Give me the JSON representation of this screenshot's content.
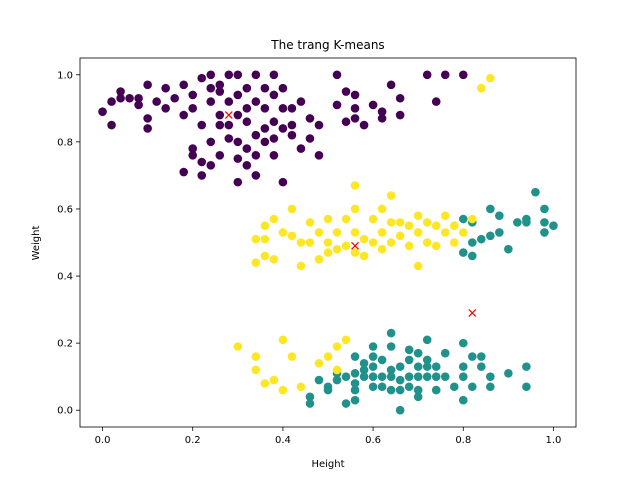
{
  "chart_data": {
    "type": "scatter",
    "title": "The trang K-means",
    "xlabel": "Height",
    "ylabel": "Weight",
    "xlim": [
      -0.05,
      1.05
    ],
    "ylim": [
      -0.05,
      1.05
    ],
    "xticks": [
      "0.0",
      "0.2",
      "0.4",
      "0.6",
      "0.8",
      "1.0"
    ],
    "yticks": [
      "0.0",
      "0.2",
      "0.4",
      "0.6",
      "0.8",
      "1.0"
    ],
    "grid": false,
    "series": [
      {
        "color": "#440154",
        "points": [
          [
            0.0,
            0.89
          ],
          [
            0.02,
            0.92
          ],
          [
            0.02,
            0.85
          ],
          [
            0.04,
            0.95
          ],
          [
            0.04,
            0.93
          ],
          [
            0.06,
            0.93
          ],
          [
            0.08,
            0.93
          ],
          [
            0.08,
            0.91
          ],
          [
            0.1,
            0.97
          ],
          [
            0.1,
            0.87
          ],
          [
            0.1,
            0.84
          ],
          [
            0.12,
            0.92
          ],
          [
            0.14,
            0.96
          ],
          [
            0.14,
            0.9
          ],
          [
            0.16,
            0.93
          ],
          [
            0.18,
            0.97
          ],
          [
            0.18,
            0.88
          ],
          [
            0.18,
            0.71
          ],
          [
            0.2,
            0.94
          ],
          [
            0.2,
            0.9
          ],
          [
            0.2,
            0.78
          ],
          [
            0.2,
            0.76
          ],
          [
            0.22,
            0.99
          ],
          [
            0.22,
            0.85
          ],
          [
            0.22,
            0.74
          ],
          [
            0.22,
            0.7
          ],
          [
            0.24,
            1.0
          ],
          [
            0.24,
            0.96
          ],
          [
            0.24,
            0.92
          ],
          [
            0.24,
            0.8
          ],
          [
            0.24,
            0.73
          ],
          [
            0.26,
            0.97
          ],
          [
            0.26,
            0.95
          ],
          [
            0.26,
            0.88
          ],
          [
            0.26,
            0.85
          ],
          [
            0.26,
            0.76
          ],
          [
            0.28,
            1.0
          ],
          [
            0.28,
            0.92
          ],
          [
            0.28,
            0.85
          ],
          [
            0.28,
            0.81
          ],
          [
            0.3,
            1.0
          ],
          [
            0.3,
            0.94
          ],
          [
            0.3,
            0.88
          ],
          [
            0.3,
            0.8
          ],
          [
            0.3,
            0.75
          ],
          [
            0.3,
            0.68
          ],
          [
            0.32,
            0.96
          ],
          [
            0.32,
            0.9
          ],
          [
            0.32,
            0.86
          ],
          [
            0.32,
            0.78
          ],
          [
            0.32,
            0.73
          ],
          [
            0.34,
            1.0
          ],
          [
            0.34,
            0.92
          ],
          [
            0.34,
            0.82
          ],
          [
            0.34,
            0.76
          ],
          [
            0.34,
            0.7
          ],
          [
            0.36,
            0.96
          ],
          [
            0.36,
            0.9
          ],
          [
            0.36,
            0.84
          ],
          [
            0.36,
            0.8
          ],
          [
            0.38,
            1.0
          ],
          [
            0.38,
            0.94
          ],
          [
            0.38,
            0.86
          ],
          [
            0.38,
            0.81
          ],
          [
            0.38,
            0.76
          ],
          [
            0.4,
            0.96
          ],
          [
            0.4,
            0.9
          ],
          [
            0.4,
            0.84
          ],
          [
            0.4,
            0.68
          ],
          [
            0.42,
            0.9
          ],
          [
            0.42,
            0.85
          ],
          [
            0.42,
            0.82
          ],
          [
            0.44,
            0.92
          ],
          [
            0.44,
            0.78
          ],
          [
            0.46,
            0.87
          ],
          [
            0.46,
            0.81
          ],
          [
            0.48,
            0.85
          ],
          [
            0.48,
            0.76
          ],
          [
            0.52,
            1.0
          ],
          [
            0.52,
            0.91
          ],
          [
            0.54,
            0.95
          ],
          [
            0.54,
            0.86
          ],
          [
            0.56,
            0.94
          ],
          [
            0.56,
            0.9
          ],
          [
            0.56,
            0.87
          ],
          [
            0.58,
            0.85
          ],
          [
            0.6,
            0.91
          ],
          [
            0.62,
            0.89
          ],
          [
            0.62,
            0.87
          ],
          [
            0.64,
            0.97
          ],
          [
            0.66,
            0.93
          ],
          [
            0.66,
            0.88
          ],
          [
            0.72,
            1.0
          ],
          [
            0.74,
            0.92
          ],
          [
            0.76,
            1.0
          ],
          [
            0.8,
            1.0
          ]
        ]
      },
      {
        "color": "#21918c",
        "points": [
          [
            0.46,
            0.04
          ],
          [
            0.46,
            0.02
          ],
          [
            0.48,
            0.09
          ],
          [
            0.5,
            0.07
          ],
          [
            0.5,
            0.06
          ],
          [
            0.52,
            0.11
          ],
          [
            0.52,
            0.09
          ],
          [
            0.54,
            0.1
          ],
          [
            0.54,
            0.02
          ],
          [
            0.56,
            0.16
          ],
          [
            0.56,
            0.11
          ],
          [
            0.56,
            0.08
          ],
          [
            0.56,
            0.06
          ],
          [
            0.56,
            0.03
          ],
          [
            0.58,
            0.14
          ],
          [
            0.58,
            0.12
          ],
          [
            0.58,
            0.1
          ],
          [
            0.6,
            0.19
          ],
          [
            0.6,
            0.16
          ],
          [
            0.6,
            0.13
          ],
          [
            0.6,
            0.1
          ],
          [
            0.6,
            0.07
          ],
          [
            0.62,
            0.15
          ],
          [
            0.62,
            0.1
          ],
          [
            0.62,
            0.07
          ],
          [
            0.64,
            0.23
          ],
          [
            0.64,
            0.19
          ],
          [
            0.64,
            0.12
          ],
          [
            0.64,
            0.1
          ],
          [
            0.64,
            0.06
          ],
          [
            0.66,
            0.13
          ],
          [
            0.66,
            0.09
          ],
          [
            0.66,
            0.06
          ],
          [
            0.66,
            0.0
          ],
          [
            0.68,
            0.18
          ],
          [
            0.68,
            0.15
          ],
          [
            0.68,
            0.1
          ],
          [
            0.68,
            0.07
          ],
          [
            0.7,
            0.17
          ],
          [
            0.7,
            0.13
          ],
          [
            0.7,
            0.1
          ],
          [
            0.7,
            0.06
          ],
          [
            0.7,
            0.04
          ],
          [
            0.72,
            0.21
          ],
          [
            0.72,
            0.15
          ],
          [
            0.72,
            0.13
          ],
          [
            0.72,
            0.1
          ],
          [
            0.74,
            0.13
          ],
          [
            0.74,
            0.1
          ],
          [
            0.74,
            0.06
          ],
          [
            0.76,
            0.17
          ],
          [
            0.76,
            0.1
          ],
          [
            0.78,
            0.07
          ],
          [
            0.8,
            0.2
          ],
          [
            0.8,
            0.13
          ],
          [
            0.8,
            0.1
          ],
          [
            0.8,
            0.03
          ],
          [
            0.82,
            0.16
          ],
          [
            0.82,
            0.07
          ],
          [
            0.84,
            0.16
          ],
          [
            0.84,
            0.13
          ],
          [
            0.86,
            0.1
          ],
          [
            0.86,
            0.07
          ],
          [
            0.9,
            0.11
          ],
          [
            0.94,
            0.13
          ],
          [
            0.94,
            0.07
          ],
          [
            0.8,
            0.57
          ],
          [
            0.8,
            0.47
          ],
          [
            0.82,
            0.56
          ],
          [
            0.82,
            0.5
          ],
          [
            0.82,
            0.46
          ],
          [
            0.84,
            0.51
          ],
          [
            0.86,
            0.6
          ],
          [
            0.86,
            0.52
          ],
          [
            0.88,
            0.58
          ],
          [
            0.88,
            0.53
          ],
          [
            0.9,
            0.48
          ],
          [
            0.92,
            0.56
          ],
          [
            0.94,
            0.57
          ],
          [
            0.94,
            0.56
          ],
          [
            0.96,
            0.65
          ],
          [
            0.98,
            0.6
          ],
          [
            0.98,
            0.56
          ],
          [
            0.98,
            0.53
          ],
          [
            1.0,
            0.55
          ]
        ]
      },
      {
        "color": "#fde725",
        "points": [
          [
            0.3,
            0.19
          ],
          [
            0.34,
            0.16
          ],
          [
            0.34,
            0.12
          ],
          [
            0.36,
            0.08
          ],
          [
            0.38,
            0.09
          ],
          [
            0.4,
            0.21
          ],
          [
            0.4,
            0.06
          ],
          [
            0.42,
            0.16
          ],
          [
            0.44,
            0.07
          ],
          [
            0.48,
            0.14
          ],
          [
            0.5,
            0.16
          ],
          [
            0.52,
            0.19
          ],
          [
            0.52,
            0.12
          ],
          [
            0.54,
            0.21
          ],
          [
            0.34,
            0.51
          ],
          [
            0.34,
            0.44
          ],
          [
            0.36,
            0.55
          ],
          [
            0.36,
            0.51
          ],
          [
            0.36,
            0.46
          ],
          [
            0.38,
            0.57
          ],
          [
            0.38,
            0.45
          ],
          [
            0.4,
            0.53
          ],
          [
            0.42,
            0.6
          ],
          [
            0.42,
            0.52
          ],
          [
            0.44,
            0.5
          ],
          [
            0.44,
            0.43
          ],
          [
            0.46,
            0.56
          ],
          [
            0.46,
            0.5
          ],
          [
            0.48,
            0.53
          ],
          [
            0.48,
            0.45
          ],
          [
            0.5,
            0.57
          ],
          [
            0.5,
            0.5
          ],
          [
            0.5,
            0.47
          ],
          [
            0.52,
            0.53
          ],
          [
            0.52,
            0.48
          ],
          [
            0.54,
            0.57
          ],
          [
            0.54,
            0.49
          ],
          [
            0.56,
            0.6
          ],
          [
            0.56,
            0.67
          ],
          [
            0.56,
            0.53
          ],
          [
            0.56,
            0.47
          ],
          [
            0.58,
            0.51
          ],
          [
            0.58,
            0.46
          ],
          [
            0.6,
            0.57
          ],
          [
            0.6,
            0.5
          ],
          [
            0.62,
            0.6
          ],
          [
            0.62,
            0.53
          ],
          [
            0.62,
            0.48
          ],
          [
            0.64,
            0.64
          ],
          [
            0.64,
            0.56
          ],
          [
            0.64,
            0.5
          ],
          [
            0.66,
            0.56
          ],
          [
            0.66,
            0.52
          ],
          [
            0.68,
            0.55
          ],
          [
            0.68,
            0.49
          ],
          [
            0.7,
            0.58
          ],
          [
            0.7,
            0.53
          ],
          [
            0.7,
            0.43
          ],
          [
            0.72,
            0.56
          ],
          [
            0.72,
            0.5
          ],
          [
            0.74,
            0.55
          ],
          [
            0.74,
            0.49
          ],
          [
            0.76,
            0.58
          ],
          [
            0.76,
            0.53
          ],
          [
            0.78,
            0.55
          ],
          [
            0.78,
            0.5
          ],
          [
            0.8,
            0.53
          ],
          [
            0.82,
            0.57
          ],
          [
            0.84,
            0.96
          ],
          [
            0.86,
            0.99
          ]
        ]
      }
    ],
    "centroids": {
      "color": "#ff0000",
      "points": [
        [
          0.28,
          0.88
        ],
        [
          0.56,
          0.49
        ],
        [
          0.82,
          0.29
        ]
      ]
    }
  }
}
